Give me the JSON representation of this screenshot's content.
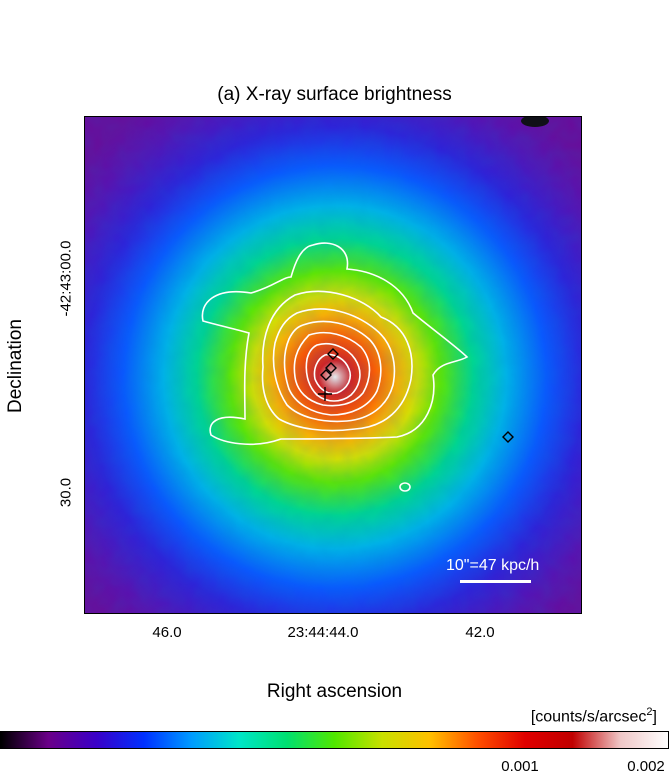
{
  "figure": {
    "title": "(a) X-ray surface brightness",
    "xlabel": "Right ascension",
    "ylabel": "Declination",
    "x_ticks": [
      "46.0",
      "23:44:44.0",
      "42.0"
    ],
    "y_ticks": [
      "-42:43:00.0",
      "30.0"
    ],
    "scale_bar_label": "10\"=47 kpc/h",
    "colorbar": {
      "unit_prefix": "[counts/s/arcsec",
      "unit_exp": "2",
      "unit_suffix": "]",
      "ticks": [
        "0.001",
        "0.002"
      ],
      "colormap": [
        "#000000",
        "#6a0088",
        "#3a00c8",
        "#0030ff",
        "#009cff",
        "#00e6c8",
        "#00e070",
        "#50e800",
        "#c8e000",
        "#ffc000",
        "#ff5000",
        "#e00000",
        "#c00000",
        "#f0c8c8",
        "#ffffff"
      ]
    },
    "markers": {
      "cross_count": 1,
      "diamond_count": 4,
      "colors": {
        "contours": "#ffffff",
        "markers": "#000000"
      }
    }
  }
}
